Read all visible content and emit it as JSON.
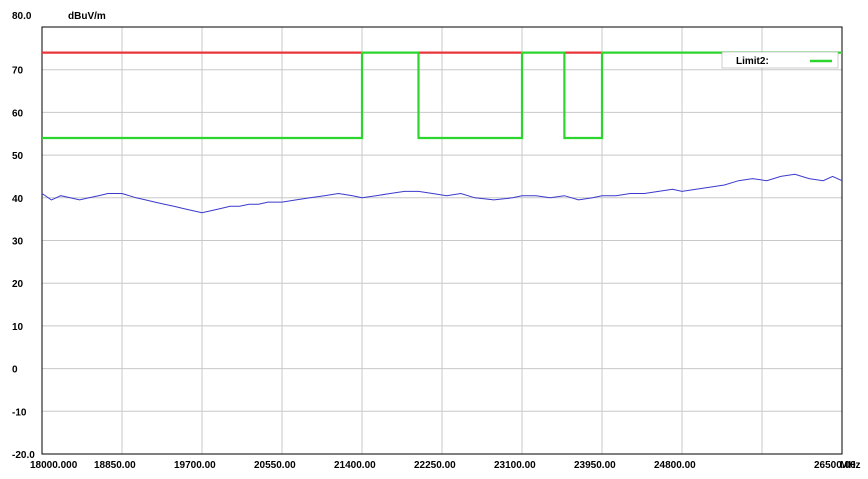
{
  "chart_data": {
    "type": "line",
    "title": "",
    "y_top_label": "80.0",
    "y_unit": "dBuV/m",
    "x_unit": "MHz",
    "xlim": [
      18000,
      26500
    ],
    "ylim": [
      -20,
      80
    ],
    "grid": true,
    "legend_position": "top-right",
    "y_ticks": [
      {
        "value": 70,
        "label": "70"
      },
      {
        "value": 60,
        "label": "60"
      },
      {
        "value": 50,
        "label": "50"
      },
      {
        "value": 40,
        "label": "40"
      },
      {
        "value": 30,
        "label": "30"
      },
      {
        "value": 20,
        "label": "20"
      },
      {
        "value": 10,
        "label": "10"
      },
      {
        "value": 0,
        "label": "0"
      },
      {
        "value": -10,
        "label": "-10"
      },
      {
        "value": -20,
        "label": "-20.0"
      }
    ],
    "x_ticks": [
      {
        "value": 18000,
        "label": "18000.000"
      },
      {
        "value": 18850,
        "label": "18850.00"
      },
      {
        "value": 19700,
        "label": "19700.00"
      },
      {
        "value": 20550,
        "label": "20550.00"
      },
      {
        "value": 21400,
        "label": "21400.00"
      },
      {
        "value": 22250,
        "label": "22250.00"
      },
      {
        "value": 23100,
        "label": "23100.00"
      },
      {
        "value": 23950,
        "label": "23950.00"
      },
      {
        "value": 24800,
        "label": "24800.00"
      },
      {
        "value": 26500,
        "label": "26500.00"
      }
    ],
    "x_grid": [
      18850,
      19700,
      20550,
      21400,
      22250,
      23100,
      23950,
      24800,
      25650
    ],
    "y_grid": [
      70,
      60,
      50,
      40,
      30,
      20,
      10,
      0,
      -10
    ],
    "series": [
      {
        "name": "",
        "color": "#e8363a",
        "segments": [
          {
            "x": [
              18000,
              21400
            ],
            "y": [
              74,
              74
            ]
          },
          {
            "x": [
              22000,
              23100
            ],
            "y": [
              74,
              74
            ]
          },
          {
            "x": [
              23550,
              23950
            ],
            "y": [
              74,
              74
            ]
          }
        ]
      },
      {
        "name": "Limit2:",
        "color": "#2cd62c",
        "x": [
          18000,
          21400,
          21400,
          22000,
          22000,
          23100,
          23100,
          23550,
          23550,
          23950,
          23950,
          26500
        ],
        "y": [
          54,
          54,
          74,
          74,
          54,
          54,
          74,
          74,
          54,
          54,
          74,
          74
        ]
      },
      {
        "name": "",
        "color": "#3a3acc",
        "x": [
          18000,
          18100,
          18200,
          18300,
          18400,
          18500,
          18600,
          18700,
          18850,
          19000,
          19100,
          19200,
          19300,
          19400,
          19500,
          19600,
          19700,
          19800,
          19900,
          20000,
          20100,
          20200,
          20300,
          20400,
          20550,
          20700,
          20850,
          21000,
          21150,
          21300,
          21400,
          21550,
          21700,
          21850,
          22000,
          22150,
          22300,
          22450,
          22600,
          22800,
          23000,
          23100,
          23250,
          23400,
          23550,
          23700,
          23850,
          23950,
          24100,
          24250,
          24400,
          24550,
          24700,
          24800,
          24950,
          25100,
          25250,
          25400,
          25550,
          25700,
          25850,
          26000,
          26150,
          26300,
          26400,
          26500
        ],
        "y": [
          41,
          39.5,
          40.5,
          40,
          39.5,
          40,
          40.5,
          41,
          41,
          40,
          39.5,
          39,
          38.5,
          38,
          37.5,
          37,
          36.5,
          37,
          37.5,
          38,
          38,
          38.5,
          38.5,
          39,
          39,
          39.5,
          40,
          40.5,
          41,
          40.5,
          40,
          40.5,
          41,
          41.5,
          41.5,
          41,
          40.5,
          41,
          40,
          39.5,
          40,
          40.5,
          40.5,
          40,
          40.5,
          39.5,
          40,
          40.5,
          40.5,
          41,
          41,
          41.5,
          42,
          41.5,
          42,
          42.5,
          43,
          44,
          44.5,
          44,
          45,
          45.5,
          44.5,
          44,
          45,
          44
        ]
      }
    ]
  }
}
